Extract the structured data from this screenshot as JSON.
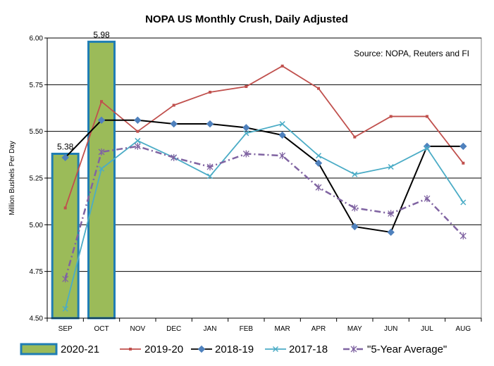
{
  "chart_data": {
    "type": "bar+line",
    "title": "NOPA US Monthly Crush, Daily Adjusted",
    "ylabel": "Million Bushels Per Day",
    "xlabel": "",
    "ylim": [
      4.5,
      6.0
    ],
    "yticks": [
      "4.50",
      "4.75",
      "5.00",
      "5.25",
      "5.50",
      "5.75",
      "6.00"
    ],
    "ytick_values": [
      4.5,
      4.75,
      5.0,
      5.25,
      5.5,
      5.75,
      6.0
    ],
    "categories": [
      "SEP",
      "OCT",
      "NOV",
      "DEC",
      "JAN",
      "FEB",
      "MAR",
      "APR",
      "MAY",
      "JUN",
      "JUL",
      "AUG"
    ],
    "grid": true,
    "legend": "bottom",
    "annotation": "Source: NOPA, Reuters and FI",
    "series": [
      {
        "name": "2020-21",
        "kind": "bar",
        "color": "#9BBB59",
        "edge": "#1F7DB4",
        "values": [
          5.38,
          5.98,
          null,
          null,
          null,
          null,
          null,
          null,
          null,
          null,
          null,
          null
        ],
        "labels": [
          "5.38",
          "5.98"
        ]
      },
      {
        "name": "2019-20",
        "kind": "line",
        "color": "#C0504D",
        "marker": "square",
        "values": [
          5.09,
          5.66,
          5.5,
          5.64,
          5.71,
          5.74,
          5.85,
          5.73,
          5.47,
          5.58,
          5.58,
          5.33
        ]
      },
      {
        "name": "2018-19",
        "kind": "line",
        "color": "#000000",
        "marker": "diamond",
        "marker_color": "#4F81BD",
        "values": [
          5.36,
          5.56,
          5.56,
          5.54,
          5.54,
          5.52,
          5.48,
          5.33,
          4.99,
          4.96,
          5.42,
          5.42
        ]
      },
      {
        "name": "2017-18",
        "kind": "line",
        "color": "#4BACC6",
        "marker": "x",
        "values": [
          4.55,
          5.3,
          5.45,
          5.36,
          5.26,
          5.49,
          5.54,
          5.37,
          5.27,
          5.31,
          5.41,
          5.12
        ]
      },
      {
        "name": "\"5-Year Average\"",
        "kind": "line",
        "color": "#8064A2",
        "dash": true,
        "marker": "asterisk",
        "values": [
          4.71,
          5.39,
          5.42,
          5.36,
          5.31,
          5.38,
          5.37,
          5.2,
          5.09,
          5.06,
          5.14,
          4.94
        ]
      }
    ]
  }
}
